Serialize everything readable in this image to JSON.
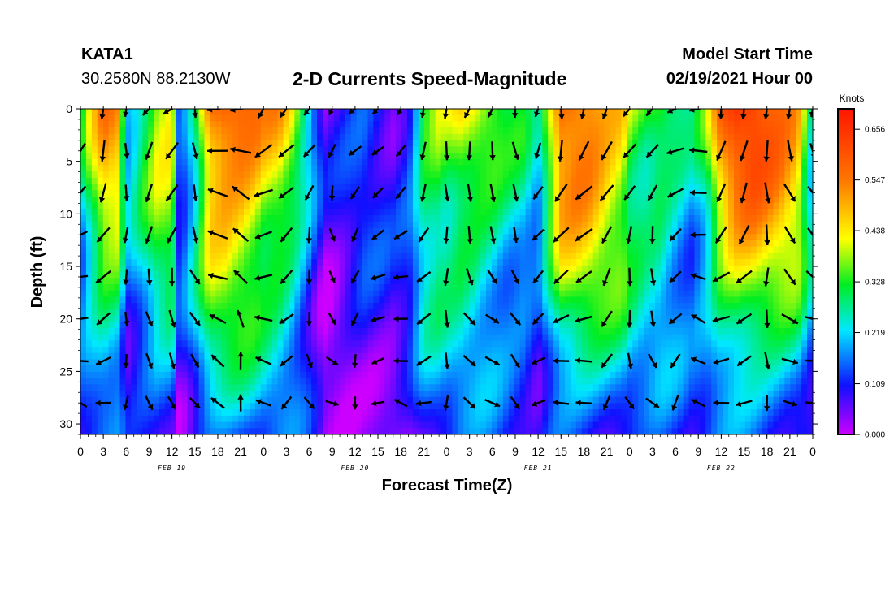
{
  "header": {
    "station": "KATA1",
    "coordinates": "30.2580N 88.2130W",
    "title": "2-D Currents Speed-Magnitude",
    "model_start_label": "Model Start Time",
    "model_start_value": "02/19/2021 Hour 00"
  },
  "chart_data": {
    "type": "heatmap",
    "title": "2-D Currents Speed-Magnitude",
    "xlabel": "Forecast Time(Z)",
    "ylabel": "Depth (ft)",
    "x_tick_labels": [
      "0",
      "3",
      "6",
      "9",
      "12",
      "15",
      "18",
      "21",
      "0",
      "3",
      "6",
      "9",
      "12",
      "15",
      "18",
      "21",
      "0",
      "3",
      "6",
      "9",
      "12",
      "15",
      "18",
      "21",
      "0",
      "3",
      "6",
      "9",
      "12",
      "15",
      "18",
      "21",
      "0"
    ],
    "date_labels": [
      "FEB 19",
      "FEB 20",
      "FEB 21",
      "FEB 22"
    ],
    "x_range_hours": [
      0,
      96
    ],
    "y_ticks": [
      0,
      5,
      10,
      15,
      20,
      25,
      30
    ],
    "ylim": [
      0,
      31
    ],
    "y_inverted": true,
    "colorbar": {
      "unit": "Knots",
      "tick_labels": [
        "0.656",
        "0.547",
        "0.438",
        "0.328",
        "0.219",
        "0.109",
        "0.000"
      ],
      "tick_values": [
        0.656,
        0.547,
        0.438,
        0.328,
        0.219,
        0.109,
        0.0
      ],
      "min": 0.0,
      "max": 0.7,
      "colors": [
        "#cc00ff",
        "#1010ff",
        "#00e8ff",
        "#00ee22",
        "#ffff00",
        "#ff7700",
        "#ff1500"
      ]
    },
    "surface_speed_profile": {
      "hours": [
        0,
        1,
        3,
        5,
        6,
        8,
        10,
        12,
        13,
        15,
        17,
        19,
        21,
        23,
        24,
        26,
        28,
        30,
        32,
        34,
        35,
        37,
        39,
        41,
        43,
        45,
        47,
        48,
        50,
        52,
        54,
        56,
        58,
        60,
        62,
        63,
        65,
        67,
        69,
        71,
        72,
        74,
        76,
        78,
        80,
        82,
        84,
        86,
        88,
        90,
        92,
        94,
        96
      ],
      "knots": [
        0.25,
        0.35,
        0.52,
        0.5,
        0.2,
        0.3,
        0.42,
        0.45,
        0.12,
        0.3,
        0.58,
        0.62,
        0.6,
        0.55,
        0.5,
        0.48,
        0.38,
        0.22,
        0.05,
        0.08,
        0.1,
        0.14,
        0.12,
        0.1,
        0.15,
        0.35,
        0.4,
        0.38,
        0.42,
        0.4,
        0.36,
        0.3,
        0.28,
        0.2,
        0.45,
        0.58,
        0.6,
        0.58,
        0.52,
        0.48,
        0.4,
        0.35,
        0.36,
        0.3,
        0.24,
        0.32,
        0.55,
        0.64,
        0.66,
        0.62,
        0.58,
        0.52,
        0.24
      ]
    },
    "vector_field": {
      "hours": [
        0,
        3,
        6,
        9,
        12,
        15,
        18,
        21,
        24,
        27,
        30,
        33,
        36,
        39,
        42,
        45,
        48,
        51,
        54,
        57,
        60,
        63,
        66,
        69,
        72,
        75,
        78,
        81,
        84,
        87,
        90,
        93,
        96
      ],
      "depths_ft": [
        0,
        4,
        8,
        12,
        16,
        20,
        24,
        28
      ],
      "surface_direction_deg": [
        200,
        180,
        180,
        220,
        240,
        180,
        270,
        270,
        220,
        225,
        225,
        210,
        230,
        220,
        200,
        180,
        180,
        200,
        200,
        180,
        200,
        180,
        200,
        210,
        230,
        230,
        250,
        260,
        180,
        180,
        180,
        180,
        180
      ]
    }
  }
}
